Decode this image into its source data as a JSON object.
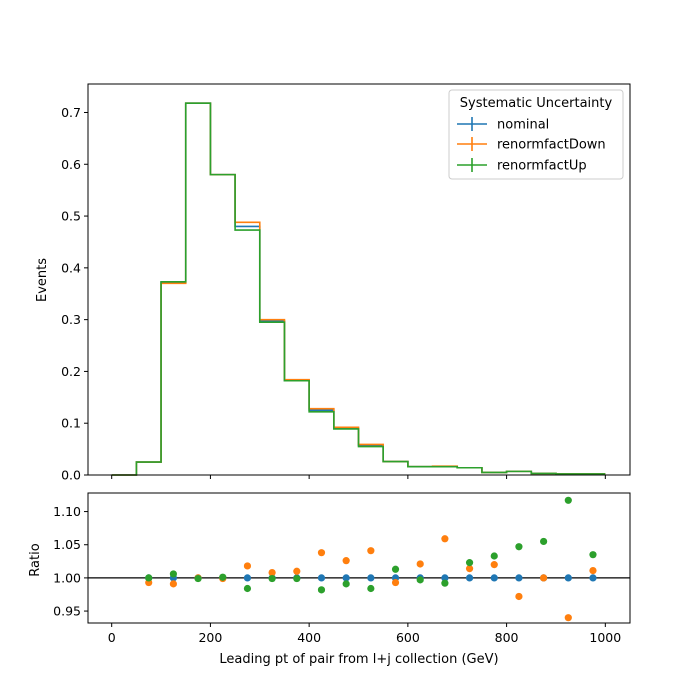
{
  "chart_data": {
    "type": "step",
    "legend": {
      "title": "Systematic Uncertainty",
      "placement": "upper-right"
    },
    "colors": {
      "nominal": "#1f77b4",
      "renormfactDown": "#ff7f0e",
      "renormfactUp": "#2ca02c",
      "axis": "#000000"
    },
    "bin_edges": [
      0,
      50,
      100,
      150,
      200,
      250,
      300,
      350,
      400,
      450,
      500,
      550,
      600,
      650,
      700,
      750,
      800,
      850,
      900,
      950,
      1000
    ],
    "top": {
      "ylabel": "Events",
      "ylim": [
        0,
        0.755
      ],
      "yticks": [
        0.0,
        0.1,
        0.2,
        0.3,
        0.4,
        0.5,
        0.6,
        0.7
      ],
      "ytick_labels": [
        "0.0",
        "0.1",
        "0.2",
        "0.3",
        "0.4",
        "0.5",
        "0.6",
        "0.7"
      ],
      "series": [
        {
          "name": "nominal",
          "color": "#1f77b4",
          "values": [
            0.0,
            0.025,
            0.372,
            0.718,
            0.58,
            0.48,
            0.297,
            0.182,
            0.125,
            0.09,
            0.057,
            0.026,
            0.016,
            0.016,
            0.014,
            0.005,
            0.007,
            0.003,
            0.002,
            0.002
          ]
        },
        {
          "name": "renormfactDown",
          "color": "#ff7f0e",
          "values": [
            0.0,
            0.025,
            0.37,
            0.718,
            0.58,
            0.488,
            0.3,
            0.184,
            0.128,
            0.092,
            0.059,
            0.026,
            0.016,
            0.017,
            0.014,
            0.005,
            0.007,
            0.003,
            0.002,
            0.002
          ]
        },
        {
          "name": "renormfactUp",
          "color": "#2ca02c",
          "values": [
            0.0,
            0.025,
            0.373,
            0.718,
            0.58,
            0.473,
            0.295,
            0.182,
            0.122,
            0.089,
            0.055,
            0.026,
            0.016,
            0.016,
            0.014,
            0.005,
            0.007,
            0.003,
            0.002,
            0.002
          ]
        }
      ]
    },
    "bottom": {
      "ylabel": "Ratio",
      "xlabel": "Leading pt of pair from l+j collection (GeV)",
      "ylim": [
        0.932,
        1.128
      ],
      "yticks": [
        0.95,
        1.0,
        1.05,
        1.1
      ],
      "ytick_labels": [
        "0.95",
        "1.00",
        "1.05",
        "1.10"
      ],
      "reference_line": 1.0,
      "x": [
        75,
        125,
        175,
        225,
        275,
        325,
        375,
        425,
        475,
        525,
        575,
        625,
        675,
        725,
        775,
        825,
        875,
        925,
        975
      ],
      "series": [
        {
          "name": "nominal",
          "color": "#1f77b4",
          "values": [
            1.0,
            1.0,
            1.0,
            1.0,
            1.0,
            1.0,
            1.0,
            1.0,
            1.0,
            1.0,
            1.0,
            1.0,
            1.0,
            1.0,
            1.0,
            1.0,
            1.0,
            1.0,
            1.0
          ]
        },
        {
          "name": "renormfactDown",
          "color": "#ff7f0e",
          "values": [
            0.993,
            0.991,
            1.0,
            0.999,
            1.018,
            1.008,
            1.01,
            1.038,
            1.026,
            1.041,
            0.993,
            1.021,
            1.059,
            1.014,
            1.02,
            0.972,
            1.0,
            0.94,
            1.011
          ]
        },
        {
          "name": "renormfactUp",
          "color": "#2ca02c",
          "values": [
            1.0,
            1.006,
            0.999,
            1.001,
            0.984,
            0.999,
            0.999,
            0.982,
            0.991,
            0.984,
            1.013,
            0.997,
            0.992,
            1.023,
            1.033,
            1.047,
            1.055,
            1.117,
            1.035
          ]
        }
      ]
    },
    "xlim": [
      -48,
      1050
    ],
    "xticks": [
      0,
      200,
      400,
      600,
      800,
      1000
    ],
    "xtick_labels": [
      "0",
      "200",
      "400",
      "600",
      "800",
      "1000"
    ]
  }
}
